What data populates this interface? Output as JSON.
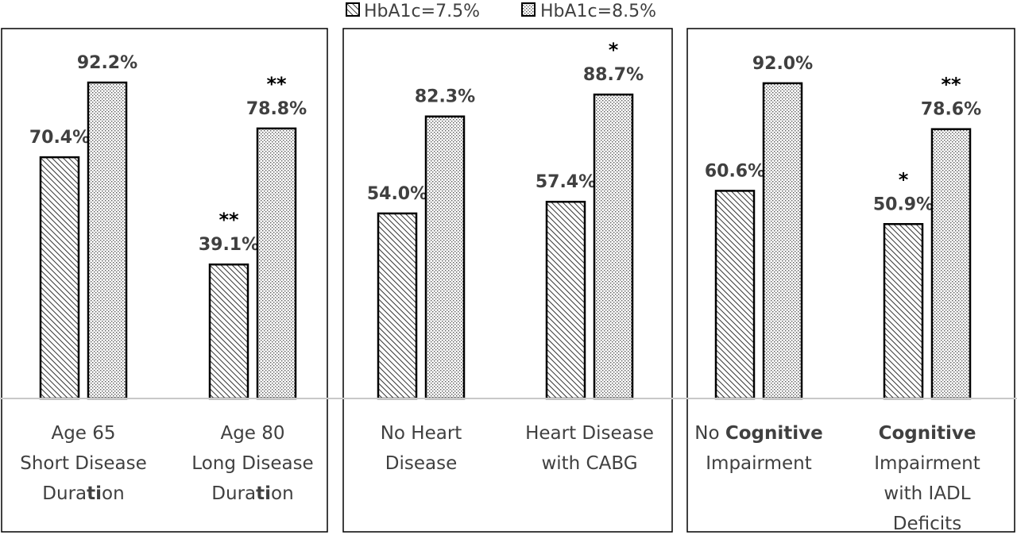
{
  "chart_data": {
    "type": "bar",
    "series": [
      {
        "name": "HbA1c=7.5%",
        "pattern": "diagonal-hatch"
      },
      {
        "name": "HbA1c=8.5%",
        "pattern": "dots"
      }
    ],
    "ylim": [
      0,
      100
    ],
    "panels": [
      {
        "groups": [
          {
            "label_lines": [
              [
                {
                  "t": "Age 65"
                }
              ],
              [
                {
                  "t": "Short Disease"
                }
              ],
              [
                {
                  "t": "Duration",
                  "b": "ti"
                }
              ]
            ],
            "values": [
              70.4,
              92.2
            ],
            "labels": [
              "70.4%",
              "92.2%"
            ],
            "marks": [
              "",
              ""
            ]
          },
          {
            "label_lines": [
              [
                {
                  "t": "Age 80"
                }
              ],
              [
                {
                  "t": "Long Disease"
                }
              ],
              [
                {
                  "t": "Duration",
                  "b": "ti"
                }
              ]
            ],
            "values": [
              39.1,
              78.8
            ],
            "labels": [
              "39.1%",
              "78.8%"
            ],
            "marks": [
              "**",
              "**"
            ]
          }
        ]
      },
      {
        "groups": [
          {
            "label_lines": [
              [
                {
                  "t": "No Heart"
                }
              ],
              [
                {
                  "t": "Disease"
                }
              ]
            ],
            "values": [
              54.0,
              82.3
            ],
            "labels": [
              "54.0%",
              "82.3%"
            ],
            "marks": [
              "",
              ""
            ]
          },
          {
            "label_lines": [
              [
                {
                  "t": "Heart Disease"
                }
              ],
              [
                {
                  "t": "with CABG"
                }
              ]
            ],
            "values": [
              57.4,
              88.7
            ],
            "labels": [
              "57.4%",
              "88.7%"
            ],
            "marks": [
              "",
              "*"
            ]
          }
        ]
      },
      {
        "groups": [
          {
            "label_lines": [
              [
                {
                  "t": "No "
                },
                {
                  "t": "Cognitive",
                  "bold": true
                }
              ],
              [
                {
                  "t": "Impairment"
                }
              ]
            ],
            "values": [
              60.6,
              92.0
            ],
            "labels": [
              "60.6%",
              "92.0%"
            ],
            "marks": [
              "",
              ""
            ]
          },
          {
            "label_lines": [
              [
                {
                  "t": "Cognitive",
                  "bold": true
                }
              ],
              [
                {
                  "t": "Impairment"
                }
              ],
              [
                {
                  "t": "with IADL"
                }
              ],
              [
                {
                  "t": "Deficits"
                }
              ]
            ],
            "values": [
              50.9,
              78.6
            ],
            "labels": [
              "50.9%",
              "78.6%"
            ],
            "marks": [
              "*",
              "**"
            ]
          }
        ]
      }
    ]
  }
}
